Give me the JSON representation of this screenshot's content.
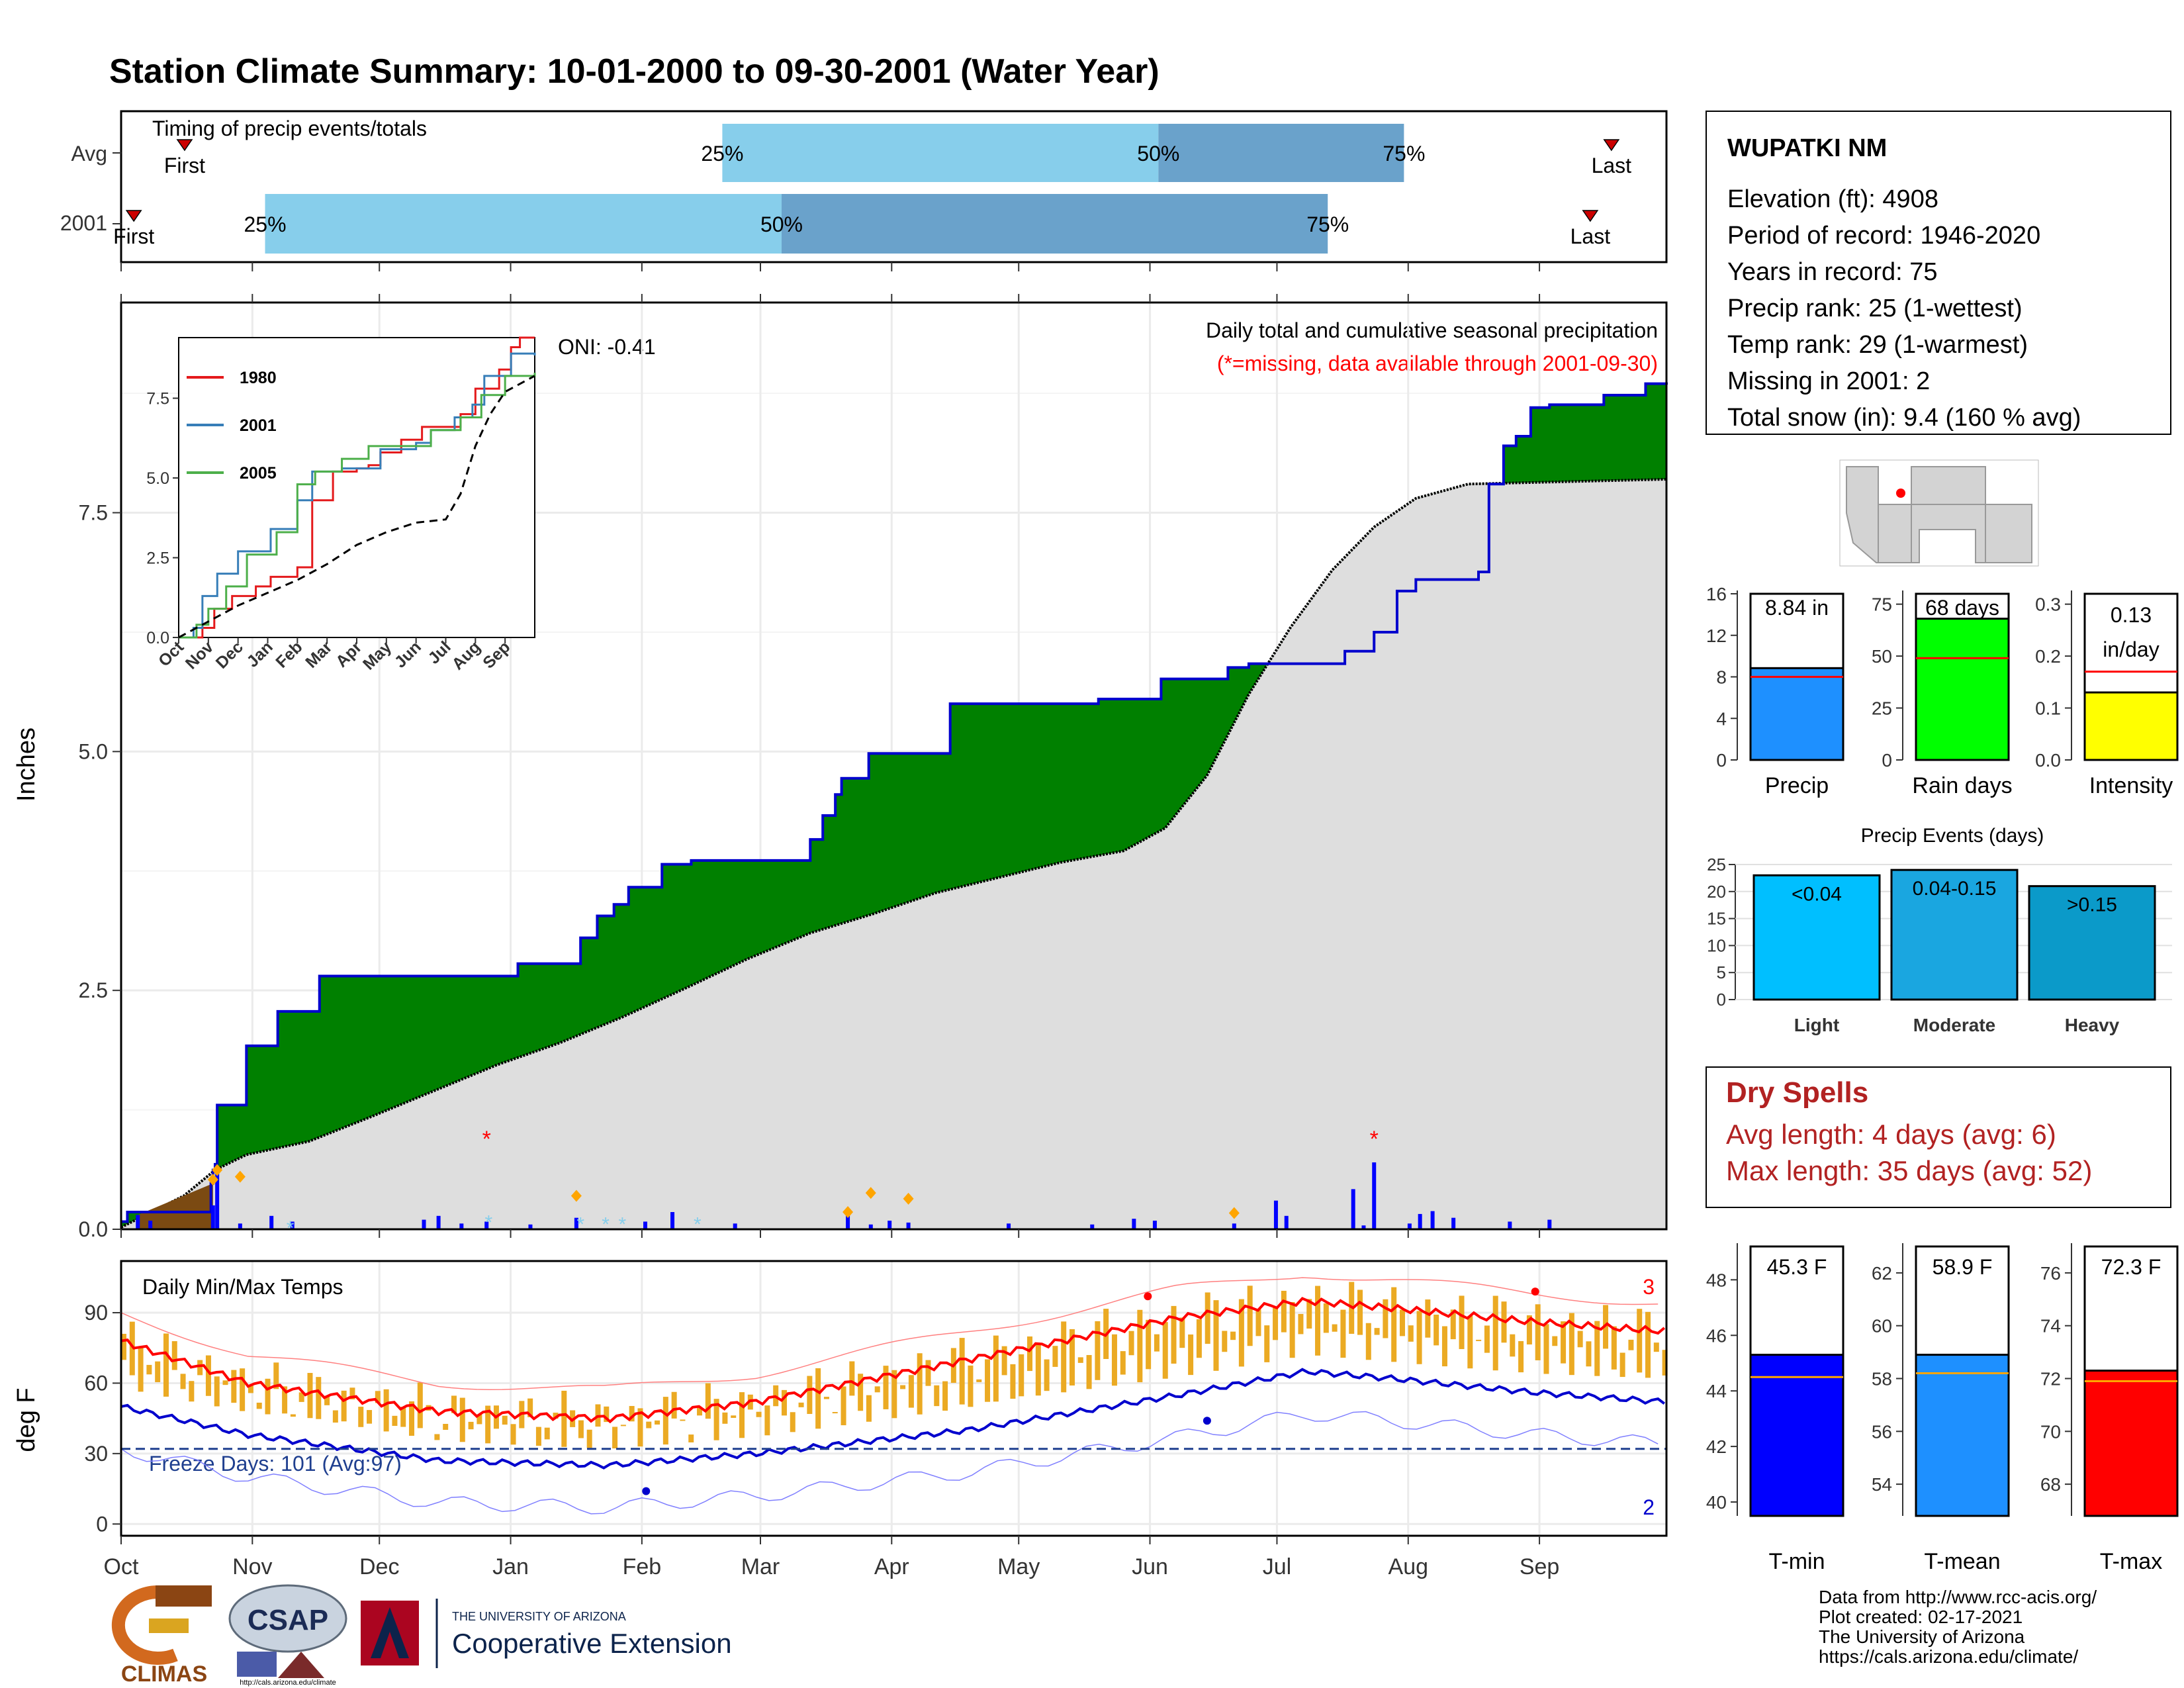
{
  "title": "Station Climate Summary: 10-01-2000 to 09-30-2001 (Water Year)",
  "colors": {
    "title": "#8B2500",
    "q_light": "#87CEEB",
    "q_dark": "#6AA2CB",
    "precip_fill": "#008000",
    "precip_line": "#0000CD",
    "normal_fill": "#DEDEDE",
    "snow_fill": "#7B4A12",
    "tbar": "#EBAA23",
    "tmax_avg": "#FF0000",
    "tmin_avg": "#0000CD",
    "dry": "#B22222"
  },
  "timing": {
    "title": "Timing of precip events/totals",
    "rows": [
      {
        "label": "Avg",
        "first_label": "First",
        "last_label": "Last",
        "q25_label": "25%",
        "q50_label": "50%",
        "q75_label": "75%",
        "first_day": 15,
        "q25_day": 142,
        "q50_day": 245,
        "q75_day": 303,
        "last_day": 352
      },
      {
        "label": "2001",
        "first_label": "First",
        "last_label": "Last",
        "q25_label": "25%",
        "q50_label": "50%",
        "q75_label": "75%",
        "first_day": 3,
        "q25_day": 34,
        "q50_day": 156,
        "q75_day": 285,
        "last_day": 347
      }
    ]
  },
  "precip": {
    "ylabel": "Inches",
    "header": "Daily total and cumulative seasonal precipitation",
    "missing_note": "(*=missing, data available through 2001-09-30)",
    "oni": "ONI: -0.41",
    "snow_count": "8",
    "missing_marker": "*"
  },
  "inset": {
    "legend": [
      "1980",
      "2001",
      "2005"
    ],
    "legend_colors": [
      "#E41A1C",
      "#377EB8",
      "#4DAF4A"
    ],
    "y_ticks": [
      "0.0",
      "2.5",
      "5.0",
      "7.5"
    ],
    "x_ticks": [
      "Oct",
      "Nov",
      "Dec",
      "Jan",
      "Feb",
      "Mar",
      "Apr",
      "May",
      "Jun",
      "Jul",
      "Aug",
      "Sep"
    ]
  },
  "temps": {
    "ylabel": "deg F",
    "title": "Daily Min/Max Temps",
    "freeze": "Freeze Days: 101 (Avg:97)",
    "max_count": "3",
    "min_count": "2"
  },
  "months": [
    "Oct",
    "Nov",
    "Dec",
    "Jan",
    "Feb",
    "Mar",
    "Apr",
    "May",
    "Jun",
    "Jul",
    "Aug",
    "Sep"
  ],
  "station": {
    "name": "WUPATKI NM",
    "lines": [
      "Elevation (ft): 4908",
      "Period of record: 1946-2020",
      "Years in record: 75",
      "Precip rank: 25 (1-wettest)",
      "Temp rank: 29 (1-warmest)",
      "Missing in 2001: 2",
      "Total snow (in): 9.4 (160 % avg)"
    ]
  },
  "summary_bars": [
    {
      "label": "Precip",
      "value_label": "8.84 in",
      "ticks": [
        "0",
        "4",
        "8",
        "12",
        "16"
      ]
    },
    {
      "label": "Rain days",
      "value_label": "68 days",
      "ticks": [
        "0",
        "25",
        "50",
        "75"
      ]
    },
    {
      "label": "Intensity",
      "value_label": "0.13",
      "value_label2": "in/day",
      "ticks": [
        "0.0",
        "0.1",
        "0.2",
        "0.3"
      ]
    }
  ],
  "events": {
    "title": "Precip Events (days)",
    "ticks": [
      "0",
      "5",
      "10",
      "15",
      "20",
      "25"
    ],
    "categories": [
      "Light",
      "Moderate",
      "Heavy"
    ],
    "labels": [
      "<0.04",
      "0.04-0.15",
      ">0.15"
    ]
  },
  "dry": {
    "title": "Dry Spells",
    "avg": "Avg length: 4 days (avg: 6)",
    "max": "Max length: 35 days (avg: 52)"
  },
  "temp_bars": [
    {
      "label": "T-min",
      "value_label": "45.3 F",
      "ticks": [
        "40",
        "42",
        "44",
        "46",
        "48"
      ]
    },
    {
      "label": "T-mean",
      "value_label": "58.9 F",
      "ticks": [
        "54",
        "56",
        "58",
        "60",
        "62"
      ]
    },
    {
      "label": "T-max",
      "value_label": "72.3 F",
      "ticks": [
        "68",
        "70",
        "72",
        "74",
        "76"
      ]
    }
  ],
  "credits": [
    "Data from http://www.rcc-acis.org/",
    "Plot created: 02-17-2021",
    "The University of Arizona",
    "https://cals.arizona.edu/climate/"
  ],
  "logos": {
    "climas": "CLIMAS",
    "csap": "CSAP",
    "ua_top": "THE UNIVERSITY OF ARIZONA",
    "ua_main": "Cooperative Extension",
    "csap_url": "http://cals.arizona.edu/climate"
  },
  "chart_data": [
    {
      "type": "area",
      "title": "Daily total and cumulative seasonal precipitation",
      "ylabel": "Inches",
      "ylim": [
        0,
        9.7
      ],
      "x_unit": "day of water year (0 = Oct 1)",
      "cumulative_2001": [
        [
          0,
          0.08
        ],
        [
          3,
          0.18
        ],
        [
          30,
          0.18
        ],
        [
          43,
          0.48
        ],
        [
          44,
          0.62
        ],
        [
          45,
          0.68
        ],
        [
          46,
          1.3
        ],
        [
          60,
          1.92
        ],
        [
          75,
          2.28
        ],
        [
          95,
          2.65
        ],
        [
          190,
          2.78
        ],
        [
          220,
          3.05
        ],
        [
          228,
          3.28
        ],
        [
          236,
          3.4
        ],
        [
          243,
          3.58
        ],
        [
          259,
          3.82
        ],
        [
          273,
          3.86
        ],
        [
          330,
          4.08
        ],
        [
          336,
          4.33
        ],
        [
          342,
          4.55
        ],
        [
          345,
          4.72
        ],
        [
          358,
          4.98
        ],
        [
          397,
          5.5
        ],
        [
          468,
          5.55
        ],
        [
          498,
          5.76
        ],
        [
          530,
          5.88
        ],
        [
          540,
          5.92
        ],
        [
          586,
          6.05
        ],
        [
          600,
          6.25
        ],
        [
          611,
          6.68
        ],
        [
          620,
          6.8
        ],
        [
          650,
          6.88
        ],
        [
          655,
          7.8
        ],
        [
          662,
          8.2
        ],
        [
          668,
          8.3
        ],
        [
          675,
          8.6
        ],
        [
          684,
          8.63
        ],
        [
          710,
          8.73
        ],
        [
          730,
          8.85
        ],
        [
          740,
          8.84
        ]
      ],
      "normal_cumulative": [
        [
          0,
          0.02
        ],
        [
          30,
          0.35
        ],
        [
          45,
          0.62
        ],
        [
          60,
          0.78
        ],
        [
          90,
          0.92
        ],
        [
          120,
          1.18
        ],
        [
          150,
          1.45
        ],
        [
          180,
          1.72
        ],
        [
          210,
          1.95
        ],
        [
          240,
          2.22
        ],
        [
          270,
          2.52
        ],
        [
          300,
          2.83
        ],
        [
          330,
          3.1
        ],
        [
          360,
          3.3
        ],
        [
          390,
          3.52
        ],
        [
          420,
          3.68
        ],
        [
          450,
          3.84
        ],
        [
          480,
          3.96
        ],
        [
          500,
          4.2
        ],
        [
          520,
          4.75
        ],
        [
          540,
          5.6
        ],
        [
          560,
          6.3
        ],
        [
          580,
          6.9
        ],
        [
          600,
          7.35
        ],
        [
          620,
          7.65
        ],
        [
          645,
          7.8
        ]
      ],
      "daily_precip": [
        [
          8,
          0.15
        ],
        [
          14,
          0.09
        ],
        [
          44,
          0.25
        ],
        [
          46,
          0.6
        ],
        [
          57,
          0.06
        ],
        [
          72,
          0.14
        ],
        [
          82,
          0.08
        ],
        [
          145,
          0.1
        ],
        [
          152,
          0.14
        ],
        [
          163,
          0.06
        ],
        [
          175,
          0.08
        ],
        [
          196,
          0.05
        ],
        [
          218,
          0.12
        ],
        [
          251,
          0.08
        ],
        [
          264,
          0.18
        ],
        [
          294,
          0.06
        ],
        [
          348,
          0.16
        ],
        [
          359,
          0.05
        ],
        [
          368,
          0.09
        ],
        [
          377,
          0.07
        ],
        [
          425,
          0.06
        ],
        [
          465,
          0.05
        ],
        [
          485,
          0.11
        ],
        [
          495,
          0.09
        ],
        [
          533,
          0.06
        ],
        [
          553,
          0.3
        ],
        [
          558,
          0.14
        ],
        [
          590,
          0.42
        ],
        [
          595,
          0.04
        ],
        [
          600,
          0.7
        ],
        [
          617,
          0.06
        ],
        [
          622,
          0.16
        ],
        [
          628,
          0.19
        ],
        [
          638,
          0.12
        ],
        [
          665,
          0.08
        ],
        [
          684,
          0.1
        ]
      ]
    },
    {
      "type": "line",
      "title": "Daily Min/Max Temps",
      "ylabel": "deg F",
      "ylim": [
        -5,
        112
      ],
      "x_unit": "day of year",
      "avg_tmax": [
        [
          0,
          78
        ],
        [
          60,
          60
        ],
        [
          150,
          48
        ],
        [
          230,
          45
        ],
        [
          300,
          52
        ],
        [
          400,
          70
        ],
        [
          500,
          88
        ],
        [
          560,
          95
        ],
        [
          600,
          92
        ],
        [
          668,
          86
        ],
        [
          730,
          82
        ]
      ],
      "avg_tmin": [
        [
          0,
          50
        ],
        [
          60,
          38
        ],
        [
          150,
          27
        ],
        [
          230,
          25
        ],
        [
          300,
          30
        ],
        [
          400,
          40
        ],
        [
          500,
          55
        ],
        [
          560,
          65
        ],
        [
          600,
          62
        ],
        [
          668,
          56
        ],
        [
          730,
          52
        ]
      ],
      "freeze_threshold": 32
    },
    {
      "type": "bar",
      "title": "Precip Events (days)",
      "categories": [
        "Light",
        "Moderate",
        "Heavy"
      ],
      "values": [
        23,
        24,
        21
      ],
      "ylim": [
        0,
        25
      ]
    },
    {
      "type": "bar",
      "categories": [
        "Precip",
        "Rain days",
        "Intensity"
      ],
      "values": [
        8.84,
        68,
        0.13
      ],
      "averages": [
        8.0,
        49,
        0.17
      ]
    },
    {
      "type": "bar",
      "categories": [
        "T-min",
        "T-mean",
        "T-max"
      ],
      "values": [
        45.3,
        58.9,
        72.3
      ],
      "averages": [
        44.5,
        58.2,
        71.9
      ]
    }
  ]
}
